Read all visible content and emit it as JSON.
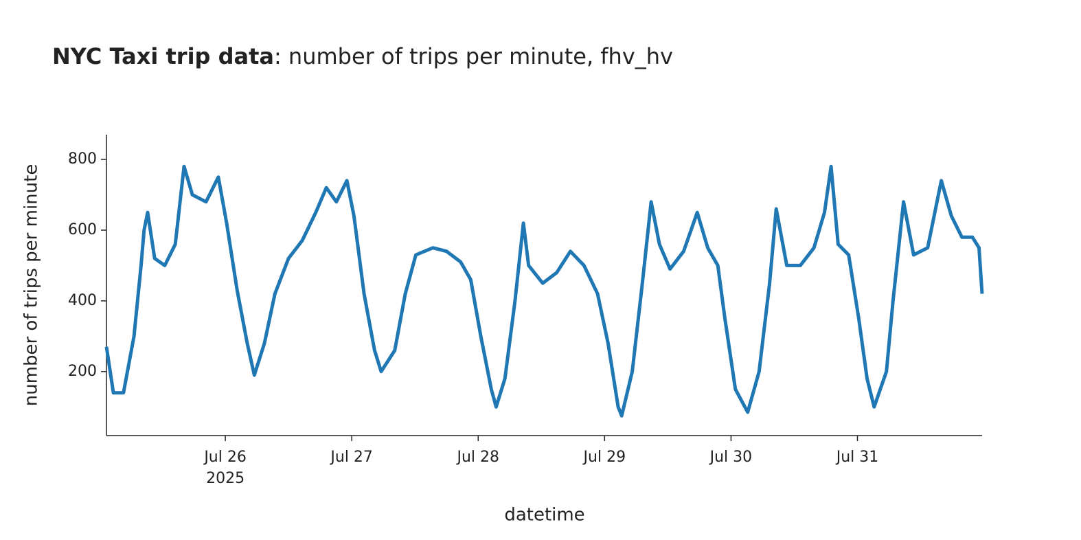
{
  "chart_data": {
    "type": "line",
    "title": "NYC Taxi trip data",
    "title_suffix": ": number of trips per minute, fhv_hv",
    "x_label": "datetime",
    "y_label": "number of trips per minute",
    "x": [
      "2025-07-25 01:26",
      "2025-07-25 02:45",
      "2025-07-25 04:40",
      "2025-07-25 06:40",
      "2025-07-25 08:00",
      "2025-07-25 08:35",
      "2025-07-25 09:15",
      "2025-07-25 10:35",
      "2025-07-25 12:30",
      "2025-07-25 14:30",
      "2025-07-25 16:10",
      "2025-07-25 17:45",
      "2025-07-25 20:20",
      "2025-07-25 22:40",
      "2025-07-26 00:15",
      "2025-07-26 02:15",
      "2025-07-26 04:10",
      "2025-07-26 05:30",
      "2025-07-26 07:25",
      "2025-07-26 09:25",
      "2025-07-26 12:00",
      "2025-07-26 14:35",
      "2025-07-26 17:10",
      "2025-07-26 19:10",
      "2025-07-26 21:05",
      "2025-07-26 23:05",
      "2025-07-27 00:25",
      "2025-07-27 02:20",
      "2025-07-27 04:20",
      "2025-07-27 05:35",
      "2025-07-27 08:10",
      "2025-07-27 10:10",
      "2025-07-27 12:10",
      "2025-07-27 15:25",
      "2025-07-27 18:00",
      "2025-07-27 20:40",
      "2025-07-27 22:35",
      "2025-07-28 00:30",
      "2025-07-28 02:30",
      "2025-07-28 03:25",
      "2025-07-28 05:05",
      "2025-07-28 07:00",
      "2025-07-28 08:35",
      "2025-07-28 09:35",
      "2025-07-28 12:15",
      "2025-07-28 14:55",
      "2025-07-28 17:30",
      "2025-07-28 20:05",
      "2025-07-28 22:40",
      "2025-07-29 00:40",
      "2025-07-29 02:35",
      "2025-07-29 03:15",
      "2025-07-29 05:15",
      "2025-07-29 07:10",
      "2025-07-29 08:50",
      "2025-07-29 10:25",
      "2025-07-29 12:25",
      "2025-07-29 15:00",
      "2025-07-29 17:35",
      "2025-07-29 19:35",
      "2025-07-29 21:30",
      "2025-07-29 22:50",
      "2025-07-30 00:50",
      "2025-07-30 03:10",
      "2025-07-30 05:20",
      "2025-07-30 07:20",
      "2025-07-30 08:35",
      "2025-07-30 10:35",
      "2025-07-30 13:10",
      "2025-07-30 15:45",
      "2025-07-30 17:45",
      "2025-07-30 19:00",
      "2025-07-30 20:20",
      "2025-07-30 22:20",
      "2025-07-31 00:15",
      "2025-07-31 01:50",
      "2025-07-31 03:10",
      "2025-07-31 05:30",
      "2025-07-31 06:45",
      "2025-07-31 08:45",
      "2025-07-31 10:40",
      "2025-07-31 13:20",
      "2025-07-31 15:55",
      "2025-07-31 17:50",
      "2025-07-31 19:50",
      "2025-07-31 21:50",
      "2025-07-31 23:05",
      "2025-07-31 23:40"
    ],
    "values": [
      270,
      140,
      140,
      300,
      500,
      600,
      650,
      520,
      500,
      560,
      780,
      700,
      680,
      750,
      620,
      430,
      280,
      190,
      280,
      420,
      520,
      570,
      650,
      720,
      680,
      740,
      640,
      420,
      260,
      200,
      260,
      420,
      530,
      550,
      540,
      510,
      460,
      300,
      150,
      100,
      180,
      400,
      620,
      500,
      450,
      480,
      540,
      500,
      420,
      280,
      100,
      75,
      200,
      450,
      680,
      560,
      490,
      540,
      650,
      550,
      500,
      350,
      150,
      85,
      200,
      450,
      660,
      500,
      500,
      550,
      650,
      780,
      560,
      530,
      350,
      180,
      100,
      200,
      400,
      680,
      530,
      550,
      740,
      640,
      580,
      580,
      550,
      420
    ],
    "color": "#1f77b4",
    "xlim": [
      "2025-07-25 01:26",
      "2025-07-31 23:40"
    ],
    "xticks": [
      {
        "value": "2025-07-26",
        "label": "Jul 26"
      },
      {
        "value": "2025-07-27",
        "label": "Jul 27"
      },
      {
        "value": "2025-07-28",
        "label": "Jul 28"
      },
      {
        "value": "2025-07-29",
        "label": "Jul 29"
      },
      {
        "value": "2025-07-30",
        "label": "Jul 30"
      },
      {
        "value": "2025-07-31",
        "label": "Jul 31"
      }
    ],
    "x_year_label": "2025",
    "ylim": [
      19,
      870
    ],
    "yticks": [
      200,
      400,
      600,
      800
    ],
    "grid": false
  }
}
